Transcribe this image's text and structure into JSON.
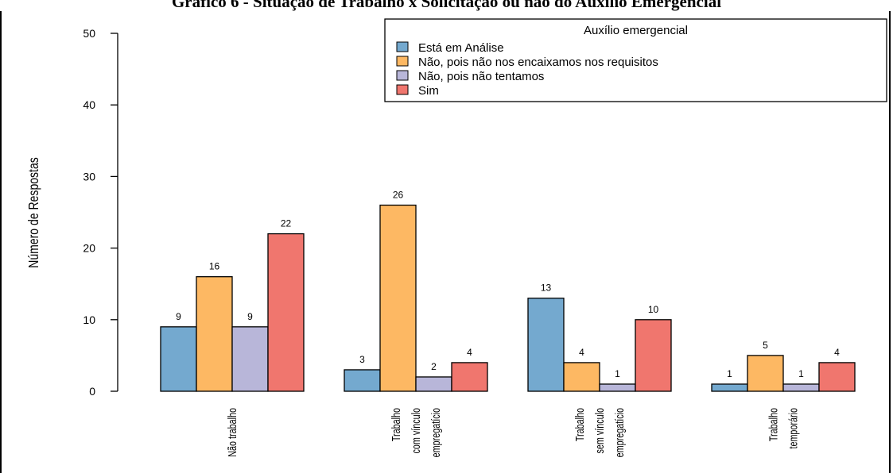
{
  "chart_data": {
    "type": "bar",
    "title": "Gráfico 6 - Situação de Trabalho x Solicitação ou não do Auxílio Emergencial",
    "ylabel": "Número de Respostas",
    "xlabel": "",
    "ylim": [
      0,
      50
    ],
    "yticks": [
      0,
      10,
      20,
      30,
      40,
      50
    ],
    "grid": false,
    "legend": {
      "title": "Auxílio emergencial",
      "placement": "top-right"
    },
    "categories": [
      [
        "Não trabalho"
      ],
      [
        "Trabalho",
        "com vínculo",
        "empregatício"
      ],
      [
        "Trabalho",
        "sem vínculo",
        "empregatício"
      ],
      [
        "Trabalho",
        "temporário"
      ]
    ],
    "series": [
      {
        "name": "Está em Análise",
        "color": "#74a9cf",
        "values": [
          9,
          3,
          13,
          1
        ]
      },
      {
        "name": "Não, pois não nos encaixamos nos requisitos",
        "color": "#fdb863",
        "values": [
          16,
          26,
          4,
          5
        ]
      },
      {
        "name": "Não, pois não tentamos",
        "color": "#b8b6d9",
        "values": [
          9,
          2,
          1,
          1
        ]
      },
      {
        "name": "Sim",
        "color": "#f0766e",
        "values": [
          22,
          4,
          10,
          4
        ]
      }
    ]
  }
}
